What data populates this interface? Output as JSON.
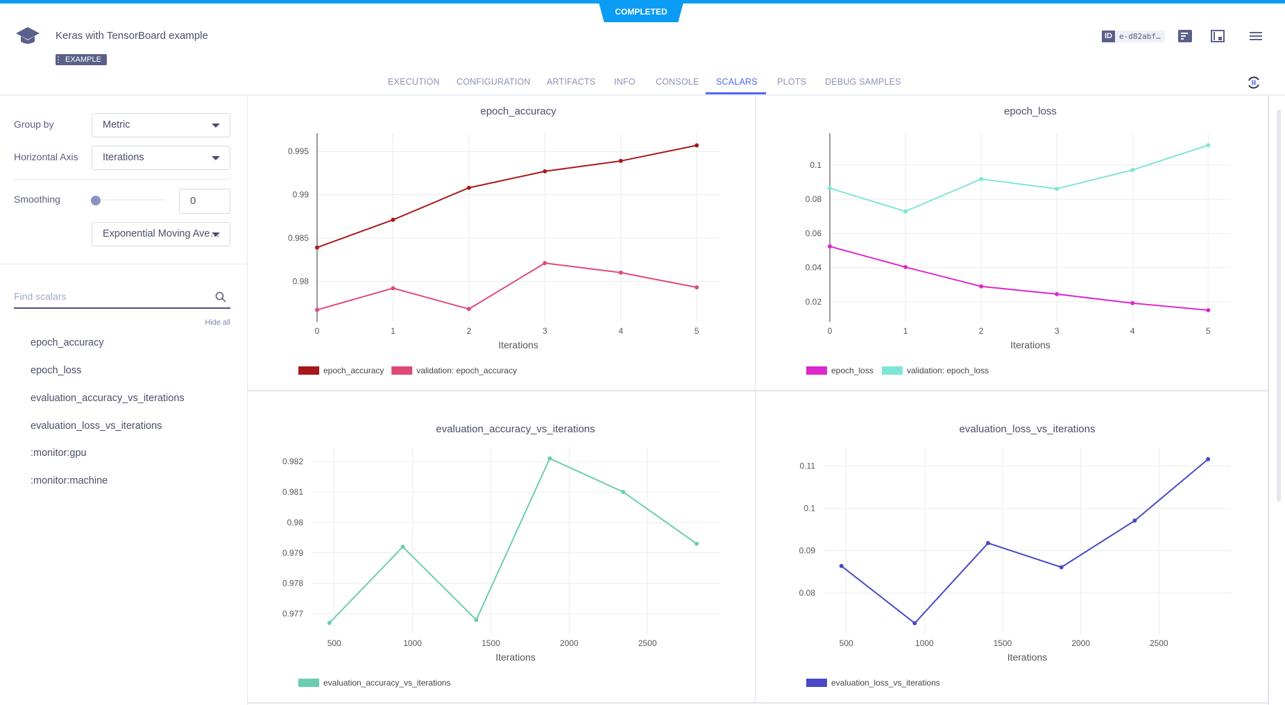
{
  "status": "COMPLETED",
  "header": {
    "title": "Keras with TensorBoard example",
    "tag": "EXAMPLE",
    "id_label": "ID",
    "id_value": "e-d82abf…"
  },
  "tabs": [
    "EXECUTION",
    "CONFIGURATION",
    "ARTIFACTS",
    "INFO",
    "CONSOLE",
    "SCALARS",
    "PLOTS",
    "DEBUG SAMPLES"
  ],
  "active_tab": "SCALARS",
  "sidebar": {
    "group_by_label": "Group by",
    "group_by_value": "Metric",
    "horizontal_axis_label": "Horizontal Axis",
    "horizontal_axis_value": "Iterations",
    "smoothing_label": "Smoothing",
    "smoothing_value": "0",
    "smoothing_level": 0,
    "smoothing_method": "Exponential Moving Ave…",
    "search_placeholder": "Find scalars",
    "hide_all": "Hide all",
    "items": [
      "epoch_accuracy",
      "epoch_loss",
      "evaluation_accuracy_vs_iterations",
      "evaluation_loss_vs_iterations",
      ":monitor:gpu",
      ":monitor:machine"
    ]
  },
  "chart_data": [
    {
      "type": "line",
      "title": "epoch_accuracy",
      "xlabel": "Iterations",
      "x": [
        0,
        1,
        2,
        3,
        4,
        5
      ],
      "xlim": [
        0,
        5.3
      ],
      "ylim": [
        0.9753,
        0.9971
      ],
      "xticks": [
        0,
        1,
        2,
        3,
        4,
        5
      ],
      "yticks": [
        0.98,
        0.985,
        0.99,
        0.995
      ],
      "ytick_labels": [
        "0.98",
        "0.985",
        "0.99",
        "0.995"
      ],
      "zero_line": true,
      "grid": true,
      "legend": "bottom-left",
      "series": [
        {
          "name": "epoch_accuracy",
          "color": "#a8181a",
          "values": [
            0.9839,
            0.9871,
            0.9908,
            0.9927,
            0.9939,
            0.9957
          ]
        },
        {
          "name": "validation: epoch_accuracy",
          "color": "#de4a76",
          "values": [
            0.9767,
            0.9792,
            0.9768,
            0.9821,
            0.981,
            0.9793
          ]
        }
      ]
    },
    {
      "type": "line",
      "title": "epoch_loss",
      "xlabel": "Iterations",
      "x": [
        0,
        1,
        2,
        3,
        4,
        5
      ],
      "xlim": [
        0,
        5.3
      ],
      "ylim": [
        0.0082,
        0.1186
      ],
      "xticks": [
        0,
        1,
        2,
        3,
        4,
        5
      ],
      "yticks": [
        0.02,
        0.04,
        0.06,
        0.08,
        0.1
      ],
      "ytick_labels": [
        "0.02",
        "0.04",
        "0.06",
        "0.08",
        "0.1"
      ],
      "zero_line": true,
      "grid": true,
      "legend": "bottom-left",
      "series": [
        {
          "name": "epoch_loss",
          "color": "#dd28cf",
          "values": [
            0.0524,
            0.0403,
            0.029,
            0.0245,
            0.0192,
            0.0151
          ]
        },
        {
          "name": "validation: epoch_loss",
          "color": "#7ee6d6",
          "values": [
            0.0864,
            0.0729,
            0.0918,
            0.0861,
            0.0971,
            0.1116
          ]
        }
      ]
    },
    {
      "type": "line",
      "title": "evaluation_accuracy_vs_iterations",
      "xlabel": "Iterations",
      "x": [
        469,
        938,
        1407,
        1876,
        2345,
        2814
      ],
      "xlim": [
        355,
        2960
      ],
      "ylim": [
        0.97633,
        0.98248
      ],
      "xticks": [
        500,
        1000,
        1500,
        2000,
        2500
      ],
      "yticks": [
        0.977,
        0.978,
        0.979,
        0.98,
        0.981,
        0.982
      ],
      "ytick_labels": [
        "0.977",
        "0.978",
        "0.979",
        "0.98",
        "0.981",
        "0.982"
      ],
      "zero_line": false,
      "grid": true,
      "legend": "bottom-left",
      "series": [
        {
          "name": "evaluation_accuracy_vs_iterations",
          "color": "#6acdb2",
          "values": [
            0.9767,
            0.9792,
            0.9768,
            0.9821,
            0.981,
            0.9793
          ]
        }
      ]
    },
    {
      "type": "line",
      "title": "evaluation_loss_vs_iterations",
      "xlabel": "Iterations",
      "x": [
        469,
        938,
        1407,
        1876,
        2345,
        2814
      ],
      "xlim": [
        355,
        2960
      ],
      "ylim": [
        0.0703,
        0.1145
      ],
      "xticks": [
        500,
        1000,
        1500,
        2000,
        2500
      ],
      "yticks": [
        0.08,
        0.09,
        0.1,
        0.11
      ],
      "ytick_labels": [
        "0.08",
        "0.09",
        "0.1",
        "0.11"
      ],
      "zero_line": false,
      "grid": true,
      "legend": "bottom-left",
      "series": [
        {
          "name": "evaluation_loss_vs_iterations",
          "color": "#4949c6",
          "values": [
            0.0864,
            0.0729,
            0.0918,
            0.0861,
            0.0971,
            0.1116
          ]
        }
      ]
    }
  ]
}
